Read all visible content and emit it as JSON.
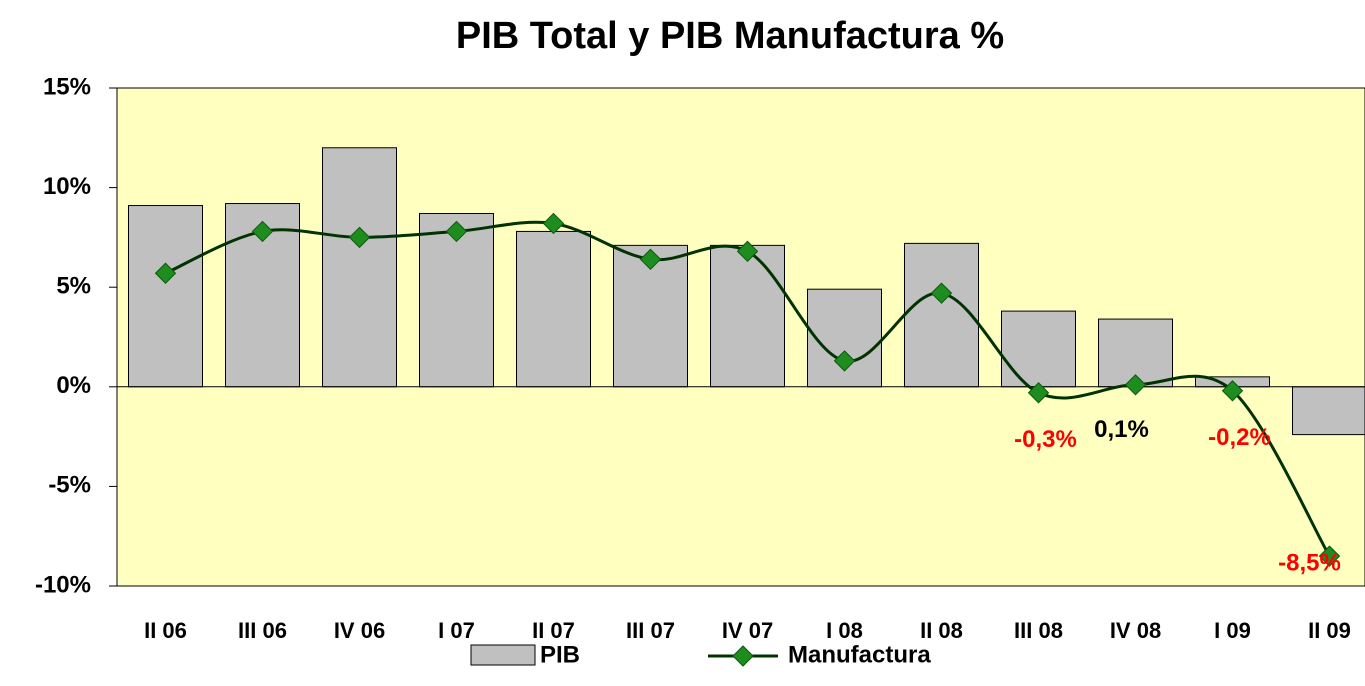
{
  "chart_data": {
    "type": "bar-line",
    "title": "PIB Total y PIB Manufactura %",
    "categories": [
      "II 06",
      "III 06",
      "IV 06",
      "I 07",
      "II 07",
      "III 07",
      "IV 07",
      "I 08",
      "II 08",
      "III 08",
      "IV 08",
      "I 09",
      "II 09"
    ],
    "series": [
      {
        "name": "PIB",
        "type": "bar",
        "color": "#c0c0c0",
        "values": [
          9.1,
          9.2,
          12.0,
          8.7,
          7.8,
          7.1,
          7.1,
          4.9,
          7.2,
          3.8,
          3.4,
          0.5,
          -2.4
        ]
      },
      {
        "name": "Manufactura",
        "type": "line",
        "color": "#003300",
        "marker_color": "#1e8c1e",
        "smooth": true,
        "values": [
          5.7,
          7.8,
          7.5,
          7.8,
          8.2,
          6.4,
          6.8,
          1.3,
          4.7,
          -0.3,
          0.1,
          -0.2,
          -8.5
        ],
        "value_labels": [
          null,
          null,
          null,
          null,
          null,
          null,
          null,
          null,
          null,
          "-0,3%",
          "0,1%",
          "-0,2%",
          "-8,5%"
        ]
      }
    ],
    "ylim": [
      -10,
      15
    ],
    "yticks": [
      {
        "value": -10,
        "label": "-10%"
      },
      {
        "value": -5,
        "label": "-5%"
      },
      {
        "value": 0,
        "label": "0%"
      },
      {
        "value": 5,
        "label": "5%"
      },
      {
        "value": 10,
        "label": "10%"
      },
      {
        "value": 15,
        "label": "15%"
      }
    ],
    "background": "#ffffc0",
    "legend": "bottom"
  }
}
